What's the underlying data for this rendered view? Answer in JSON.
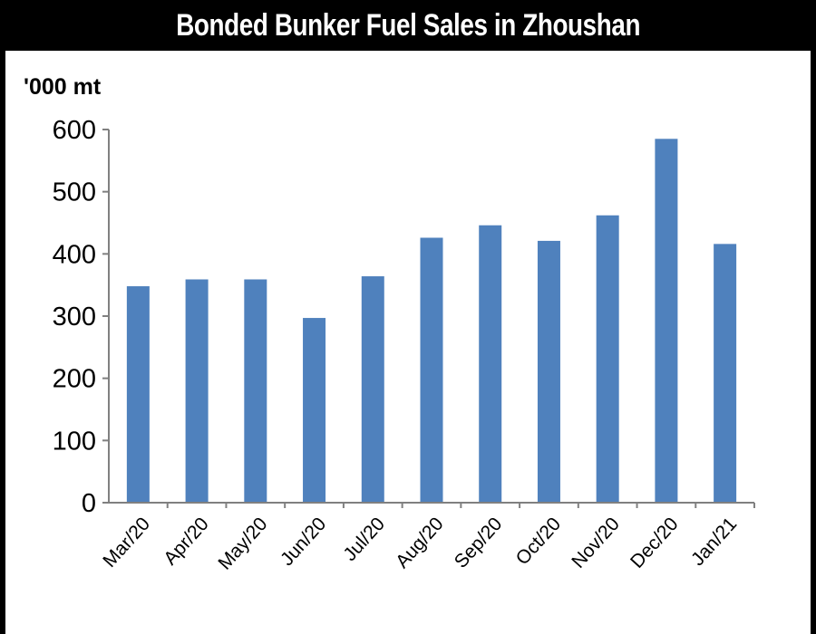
{
  "chart_data": {
    "type": "bar",
    "title": "Bonded Bunker Fuel Sales in Zhoushan",
    "ylabel": "'000 mt",
    "xlabel": "",
    "categories": [
      "Mar/20",
      "Apr/20",
      "May/20",
      "Jun/20",
      "Jul/20",
      "Aug/20",
      "Sep/20",
      "Oct/20",
      "Nov/20",
      "Dec/20",
      "Jan/21"
    ],
    "values": [
      348,
      359,
      359,
      297,
      364,
      426,
      446,
      421,
      462,
      585,
      416
    ],
    "ylim": [
      0,
      600
    ],
    "yticks": [
      0,
      100,
      200,
      300,
      400,
      500,
      600
    ],
    "grid": false,
    "legend": "none",
    "bar_color": "#4f81bd"
  }
}
